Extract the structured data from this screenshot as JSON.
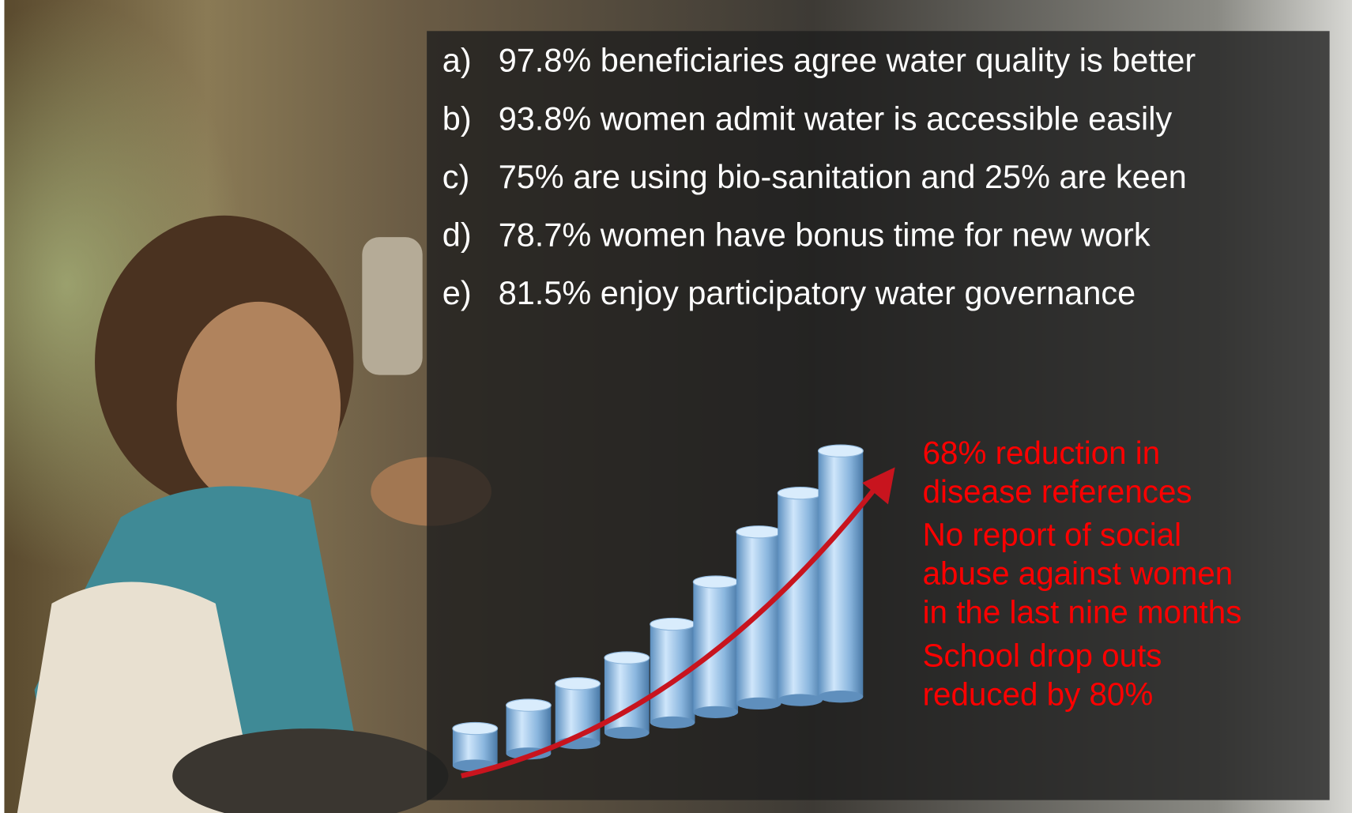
{
  "items": [
    {
      "label": "a)",
      "text": "97.8% beneficiaries agree water quality is better"
    },
    {
      "label": "b)",
      "text": "93.8% women admit water is accessible easily"
    },
    {
      "label": "c)",
      "text": "75% are using bio-sanitation and 25% are keen"
    },
    {
      "label": "d)",
      "text": "78.7% women have bonus time for new work"
    },
    {
      "label": "e)",
      "text": "81.5% enjoy participatory water governance"
    }
  ],
  "notes": [
    [
      "68% reduction in",
      "disease references"
    ],
    [
      "No report of social",
      "abuse against women",
      "in the last nine months"
    ],
    [
      "School drop outs",
      "reduced by 80%"
    ]
  ]
}
